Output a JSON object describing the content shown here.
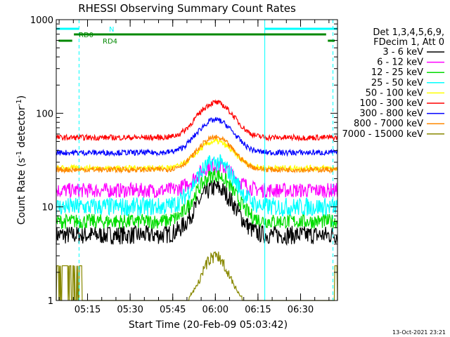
{
  "chart_data": {
    "type": "line",
    "title": "RHESSI Observing Summary Count Rates",
    "xlabel": "Start Time (20-Feb-09 05:03:42)",
    "ylabel_main": "Count Rate (s",
    "ylabel_sup1": "-1",
    "ylabel_mid": " detector",
    "ylabel_sup2": "-1",
    "ylabel_end": ")",
    "yscale": "log",
    "ylim": [
      1,
      1000
    ],
    "xlim_minutes": [
      5.0663,
      6.7167
    ],
    "y_ticks": [
      {
        "value": 1,
        "label": "1"
      },
      {
        "value": 10,
        "label": "10"
      },
      {
        "value": 100,
        "label": "100"
      },
      {
        "value": 1000,
        "label": "1000"
      }
    ],
    "x_ticks": [
      {
        "value": 5.25,
        "label": "05:15"
      },
      {
        "value": 5.5,
        "label": "05:30"
      },
      {
        "value": 5.75,
        "label": "05:45"
      },
      {
        "value": 6.0,
        "label": "06:00"
      },
      {
        "value": 6.25,
        "label": "06:15"
      },
      {
        "value": 6.5,
        "label": "06:30"
      }
    ],
    "legend": {
      "placement": "right",
      "header": [
        "Det 1,3,4,5,6,9,",
        "FDecim 1, Att 0"
      ]
    },
    "series": [
      {
        "name": "3 - 6 keV",
        "color": "#000000",
        "base": 5,
        "peak": 16,
        "jitter": 0.1
      },
      {
        "name": "6 - 12 keV",
        "color": "#ff00ff",
        "base": 15,
        "peak": 28,
        "jitter": 0.08
      },
      {
        "name": "12 - 25 keV",
        "color": "#00dd00",
        "base": 7,
        "peak": 22,
        "jitter": 0.08
      },
      {
        "name": "25 - 50 keV",
        "color": "#00ffff",
        "base": 10,
        "peak": 30,
        "jitter": 0.1
      },
      {
        "name": "50 - 100 keV",
        "color": "#ffff00",
        "base": 26,
        "peak": 50,
        "jitter": 0.03
      },
      {
        "name": "100 - 300 keV",
        "color": "#ff0000",
        "base": 55,
        "peak": 130,
        "jitter": 0.03
      },
      {
        "name": "300 - 800 keV",
        "color": "#0000ff",
        "base": 38,
        "peak": 85,
        "jitter": 0.03
      },
      {
        "name": "800 - 7000 keV",
        "color": "#ff8800",
        "base": 25,
        "peak": 55,
        "jitter": 0.03
      },
      {
        "name": "7000 - 15000 keV",
        "color": "#888800",
        "base": 1,
        "peak": 3.5,
        "jitter": 0
      }
    ],
    "flags": [
      {
        "label": "N",
        "color": "#00ffff",
        "segments": [
          [
            5.0663,
            5.2
          ],
          [
            6.29,
            6.7167
          ]
        ]
      },
      {
        "label": "RD0",
        "color": "#008800",
        "segments": [
          [
            5.17,
            6.65
          ]
        ]
      },
      {
        "label": "RD4",
        "color": "#008800",
        "segments": [
          [
            5.08,
            5.16
          ],
          [
            6.66,
            6.7
          ]
        ]
      }
    ],
    "vlines_solid_cyan": [
      5.0663,
      6.29
    ],
    "vlines_dashed_cyan": [
      5.2,
      6.69
    ],
    "grid": false
  },
  "timestamp": "13-Oct-2021 23:21"
}
